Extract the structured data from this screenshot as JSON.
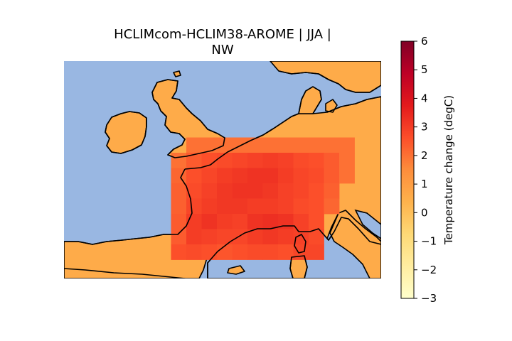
{
  "chart_data": {
    "type": "heatmap",
    "title_lines": [
      "HCLIMcom-HCLIM38-AROME | JJA |",
      "NW"
    ],
    "colorbar": {
      "label": "Temperature change (degC)",
      "min": -3,
      "max": 6,
      "ticks": [
        "−3",
        "−2",
        "−1",
        "0",
        "1",
        "2",
        "3",
        "4",
        "5",
        "6"
      ],
      "colormap": "YlOrRd"
    },
    "grid_values": [
      [
        null,
        null,
        null,
        null,
        null,
        null,
        null,
        null,
        null,
        null,
        null,
        null,
        null,
        null,
        null,
        null,
        null,
        null,
        null,
        null
      ],
      [
        null,
        null,
        null,
        null,
        null,
        null,
        null,
        null,
        null,
        null,
        null,
        null,
        null,
        null,
        null,
        null,
        null,
        null,
        null,
        null
      ],
      [
        null,
        null,
        null,
        null,
        null,
        null,
        null,
        null,
        null,
        null,
        null,
        null,
        null,
        null,
        null,
        null,
        null,
        null,
        null,
        null
      ],
      [
        null,
        null,
        null,
        null,
        null,
        null,
        null,
        null,
        null,
        null,
        null,
        null,
        null,
        null,
        null,
        null,
        null,
        null,
        null,
        null
      ],
      [
        null,
        null,
        null,
        null,
        null,
        null,
        null,
        null,
        null,
        null,
        null,
        null,
        null,
        null,
        null,
        null,
        null,
        null,
        null,
        null
      ],
      [
        null,
        null,
        null,
        null,
        null,
        null,
        null,
        null,
        2.0,
        2.0,
        2.0,
        2.0,
        2.0,
        2.0,
        2.0,
        2.0,
        2.0,
        2.0,
        2.0,
        null
      ],
      [
        null,
        null,
        null,
        null,
        null,
        null,
        null,
        2.0,
        2.4,
        2.6,
        2.7,
        2.8,
        2.9,
        3.0,
        2.9,
        2.7,
        2.6,
        2.4,
        2.0,
        null
      ],
      [
        null,
        null,
        null,
        null,
        null,
        null,
        null,
        2.2,
        2.6,
        2.8,
        3.0,
        3.1,
        3.2,
        3.2,
        3.0,
        2.8,
        2.7,
        2.4,
        2.0,
        null
      ],
      [
        null,
        null,
        null,
        null,
        null,
        null,
        null,
        2.3,
        2.7,
        2.9,
        3.1,
        3.2,
        3.2,
        3.1,
        2.9,
        2.8,
        2.6,
        2.3,
        null,
        null
      ],
      [
        null,
        null,
        null,
        null,
        null,
        null,
        null,
        2.3,
        2.8,
        3.0,
        3.1,
        3.1,
        3.0,
        3.0,
        2.9,
        2.7,
        2.6,
        2.2,
        null,
        null
      ],
      [
        null,
        null,
        null,
        null,
        null,
        null,
        null,
        2.4,
        3.0,
        3.2,
        3.0,
        2.9,
        3.2,
        3.3,
        3.2,
        2.9,
        2.6,
        null,
        null,
        null
      ],
      [
        null,
        null,
        null,
        null,
        null,
        null,
        null,
        2.4,
        3.0,
        2.9,
        2.8,
        2.8,
        3.0,
        3.1,
        3.0,
        2.9,
        2.7,
        null,
        null,
        null
      ],
      [
        null,
        null,
        null,
        null,
        null,
        null,
        null,
        2.6,
        2.7,
        2.6,
        2.5,
        2.6,
        2.7,
        2.7,
        2.6,
        2.8,
        2.8,
        null,
        null,
        null
      ],
      [
        null,
        null,
        null,
        null,
        null,
        null,
        null,
        null,
        null,
        null,
        null,
        null,
        null,
        null,
        null,
        null,
        null,
        null,
        null,
        null
      ]
    ],
    "land_value": 0.6
  }
}
